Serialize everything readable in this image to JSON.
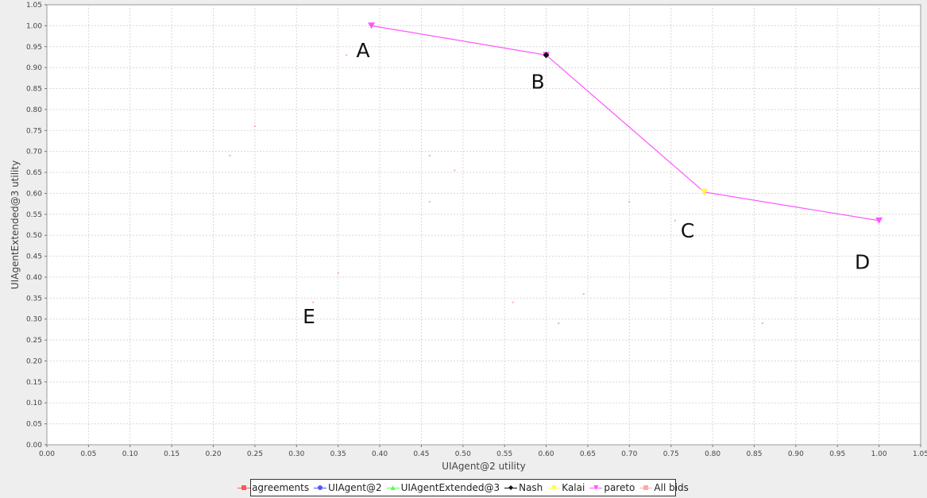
{
  "chart_data": {
    "type": "scatter",
    "xlabel": "UIAgent@2 utility",
    "ylabel": "UIAgentExtended@3 utility",
    "xlim": [
      0,
      1.05
    ],
    "ylim": [
      0,
      1.05
    ],
    "x_ticks": [
      "0.00",
      "0.05",
      "0.10",
      "0.15",
      "0.20",
      "0.25",
      "0.30",
      "0.35",
      "0.40",
      "0.45",
      "0.50",
      "0.55",
      "0.60",
      "0.65",
      "0.70",
      "0.75",
      "0.80",
      "0.85",
      "0.90",
      "0.95",
      "1.00",
      "1.05"
    ],
    "y_ticks": [
      "0.00",
      "0.05",
      "0.10",
      "0.15",
      "0.20",
      "0.25",
      "0.30",
      "0.35",
      "0.40",
      "0.45",
      "0.50",
      "0.55",
      "0.60",
      "0.65",
      "0.70",
      "0.75",
      "0.80",
      "0.85",
      "0.90",
      "0.95",
      "1.00",
      "1.05"
    ],
    "grid": true,
    "legend_position": "bottom",
    "series": [
      {
        "name": "agreements",
        "color": "#ff5555",
        "marker": "square",
        "points": []
      },
      {
        "name": "UIAgent@2",
        "color": "#5555ff",
        "marker": "circle",
        "points": []
      },
      {
        "name": "UIAgentExtended@3",
        "color": "#55ff55",
        "marker": "triangle-up",
        "points": []
      },
      {
        "name": "Nash",
        "color": "#111111",
        "marker": "diamond",
        "points": [
          {
            "x": 0.6,
            "y": 0.93
          }
        ]
      },
      {
        "name": "Kalai",
        "color": "#ffff33",
        "marker": "triangle-down",
        "points": [
          {
            "x": 0.79,
            "y": 0.603
          }
        ]
      },
      {
        "name": "pareto",
        "color": "#ff55ff",
        "marker": "triangle-down",
        "line": true,
        "points": [
          {
            "x": 0.39,
            "y": 1.0
          },
          {
            "x": 0.6,
            "y": 0.93
          },
          {
            "x": 0.79,
            "y": 0.603
          },
          {
            "x": 1.0,
            "y": 0.535
          }
        ]
      },
      {
        "name": "All bids",
        "color": "#ffaaaa",
        "marker": "dot",
        "points": [
          {
            "x": 0.22,
            "y": 0.69
          },
          {
            "x": 0.25,
            "y": 0.76
          },
          {
            "x": 0.32,
            "y": 0.34
          },
          {
            "x": 0.35,
            "y": 0.41
          },
          {
            "x": 0.36,
            "y": 0.93
          },
          {
            "x": 0.39,
            "y": 1.0
          },
          {
            "x": 0.46,
            "y": 0.58
          },
          {
            "x": 0.46,
            "y": 0.69
          },
          {
            "x": 0.49,
            "y": 0.655
          },
          {
            "x": 0.56,
            "y": 0.34
          },
          {
            "x": 0.6,
            "y": 0.93
          },
          {
            "x": 0.615,
            "y": 0.29
          },
          {
            "x": 0.645,
            "y": 0.36
          },
          {
            "x": 0.7,
            "y": 0.58
          },
          {
            "x": 0.755,
            "y": 0.535
          },
          {
            "x": 0.79,
            "y": 0.603
          },
          {
            "x": 0.86,
            "y": 0.29
          },
          {
            "x": 1.0,
            "y": 0.535
          }
        ]
      }
    ],
    "annotations": [
      {
        "text": "A",
        "x": 0.38,
        "y": 0.925
      },
      {
        "text": "B",
        "x": 0.59,
        "y": 0.85
      },
      {
        "text": "C",
        "x": 0.77,
        "y": 0.495
      },
      {
        "text": "D",
        "x": 0.98,
        "y": 0.42
      },
      {
        "text": "E",
        "x": 0.315,
        "y": 0.29
      }
    ]
  }
}
